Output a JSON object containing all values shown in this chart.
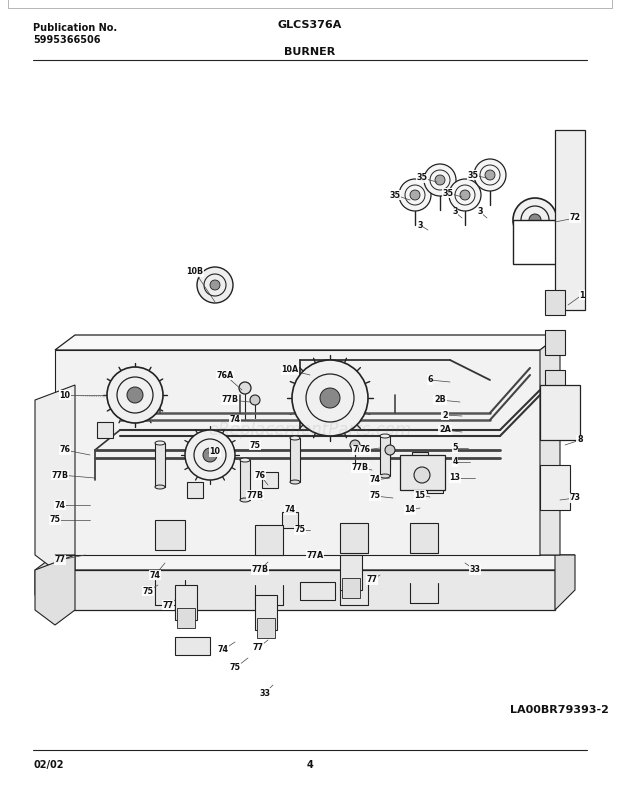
{
  "title_left_line1": "Publication No.",
  "title_left_line2": "5995366506",
  "title_center": "GLCS376A",
  "title_section": "BURNER",
  "bottom_left": "02/02",
  "bottom_center": "4",
  "bottom_right": "LA00BR79393-2",
  "bg_color": "#ffffff",
  "text_color": "#1a1a1a",
  "line_color": "#222222",
  "fig_width": 6.2,
  "fig_height": 7.93,
  "dpi": 100,
  "watermark": "eReplacementParts.com",
  "watermark_alpha": 0.15
}
